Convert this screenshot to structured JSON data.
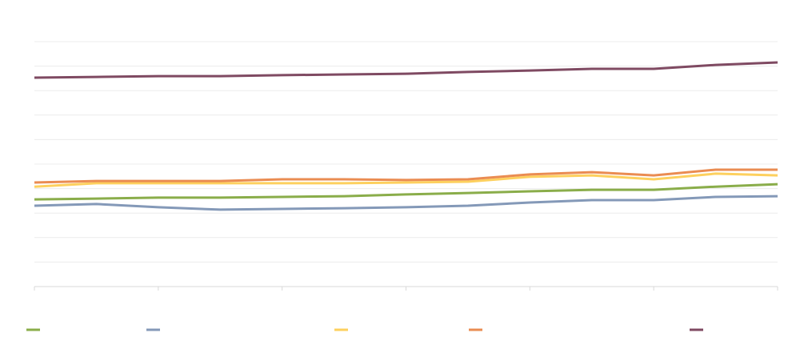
{
  "chart_data": {
    "type": "line",
    "categories": [
      null,
      null,
      null,
      null,
      null,
      null,
      null,
      null,
      null,
      null,
      null,
      null,
      null
    ],
    "series": [
      {
        "color": "#8aad4a",
        "values": [
          3.56,
          3.59,
          3.63,
          3.63,
          3.66,
          3.69,
          3.76,
          3.82,
          3.89,
          3.95,
          3.95,
          4.08,
          4.18
        ]
      },
      {
        "color": "#8499b8",
        "values": [
          3.3,
          3.37,
          3.24,
          3.14,
          3.17,
          3.2,
          3.24,
          3.3,
          3.43,
          3.53,
          3.53,
          3.66,
          3.69
        ]
      },
      {
        "color": "#fdd05e",
        "values": [
          4.08,
          4.22,
          4.22,
          4.22,
          4.22,
          4.22,
          4.25,
          4.28,
          4.48,
          4.54,
          4.38,
          4.61,
          4.54
        ]
      },
      {
        "color": "#ea8c52",
        "values": [
          4.25,
          4.31,
          4.31,
          4.31,
          4.38,
          4.38,
          4.35,
          4.38,
          4.58,
          4.67,
          4.54,
          4.77,
          4.77
        ]
      },
      {
        "color": "#7f4a62",
        "values": [
          8.53,
          8.56,
          8.59,
          8.59,
          8.63,
          8.66,
          8.69,
          8.76,
          8.82,
          8.89,
          8.89,
          9.05,
          9.15
        ]
      }
    ],
    "ylim": [
      0,
      10
    ],
    "yticks": [
      0,
      1,
      2,
      3,
      4,
      5,
      6,
      7,
      8,
      9,
      10
    ],
    "grid": true
  }
}
